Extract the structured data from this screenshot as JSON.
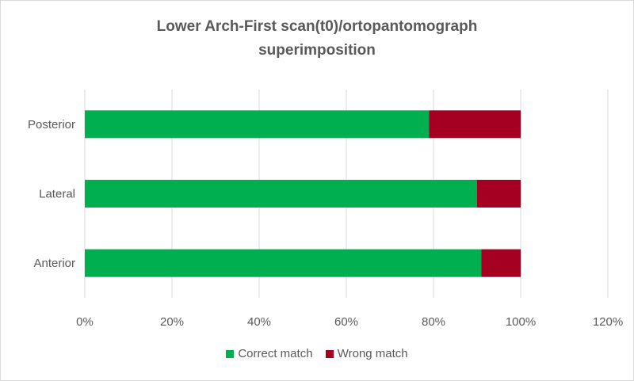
{
  "chart_data": {
    "type": "bar",
    "orientation": "horizontal",
    "stacked": true,
    "title_lines": [
      "Lower Arch-First scan(t0)/ortopantomograph",
      "superimposition"
    ],
    "categories": [
      "Posterior",
      "Lateral",
      "Anterior"
    ],
    "series": [
      {
        "name": "Correct match",
        "color": "#00b050",
        "values": [
          0.79,
          0.9,
          0.91
        ]
      },
      {
        "name": "Wrong match",
        "color": "#a50021",
        "values": [
          0.21,
          0.1,
          0.09
        ]
      }
    ],
    "xlim": [
      0,
      1.2
    ],
    "xticks": [
      {
        "value": 0,
        "label": "0%"
      },
      {
        "value": 0.2,
        "label": "20%"
      },
      {
        "value": 0.4,
        "label": "40%"
      },
      {
        "value": 0.6,
        "label": "60%"
      },
      {
        "value": 0.8,
        "label": "80%"
      },
      {
        "value": 1.0,
        "label": "100%"
      },
      {
        "value": 1.2,
        "label": "120%"
      }
    ],
    "grid": true,
    "legend_position": "bottom"
  }
}
